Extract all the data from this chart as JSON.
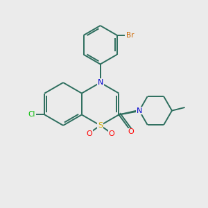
{
  "bg_color": "#ebebeb",
  "atom_colors": {
    "C": "#000000",
    "N": "#0000cc",
    "S": "#ccaa00",
    "O": "#ff0000",
    "Cl": "#00bb00",
    "Br": "#cc6600"
  },
  "bond_color": "#2d6e5e",
  "bond_width": 1.4
}
